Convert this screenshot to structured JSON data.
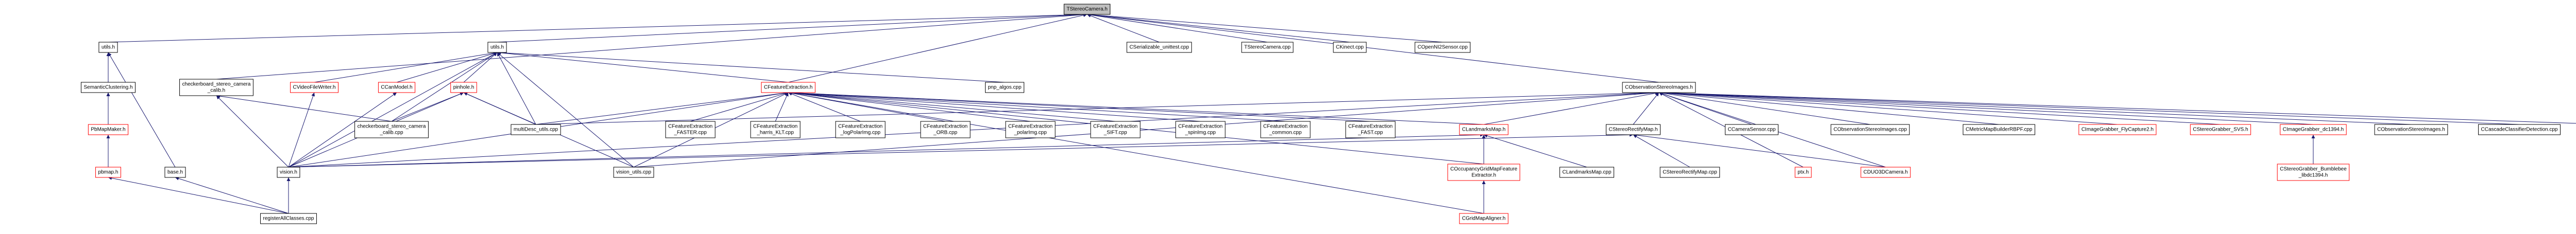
{
  "nodes": [
    {
      "lines": [
        "TStereoCamera.h"
      ],
      "fill": "#bfbfbf"
    },
    {
      "lines": [
        "utils.h"
      ]
    },
    {
      "lines": [
        "utils.h"
      ]
    },
    {
      "lines": [
        "CSerializable_unittest.cpp"
      ]
    },
    {
      "lines": [
        "TStereoCamera.cpp"
      ]
    },
    {
      "lines": [
        "CKinect.cpp"
      ]
    },
    {
      "lines": [
        "COpenNI2Sensor.cpp"
      ]
    },
    {
      "lines": [
        "SemanticClustering.h"
      ]
    },
    {
      "lines": [
        "checkerboard_stereo_camera",
        "_calib.h"
      ]
    },
    {
      "lines": [
        "CVideoFileWriter.h"
      ],
      "border": "#ff0000"
    },
    {
      "lines": [
        "CCanModel.h"
      ],
      "border": "#ff0000"
    },
    {
      "lines": [
        "pinhole.h"
      ],
      "border": "#ff0000"
    },
    {
      "lines": [
        "CFeatureExtraction.h"
      ],
      "border": "#ff0000"
    },
    {
      "lines": [
        "pnp_algos.cpp"
      ]
    },
    {
      "lines": [
        "CObservationStereoImages.h"
      ]
    },
    {
      "lines": [
        "PbMapMaker.h"
      ],
      "border": "#ff0000"
    },
    {
      "lines": [
        "checkerboard_stereo_camera",
        "_calib.cpp"
      ]
    },
    {
      "lines": [
        "multiDesc_utils.cpp"
      ]
    },
    {
      "lines": [
        "CFeatureExtraction",
        "_FASTER.cpp"
      ]
    },
    {
      "lines": [
        "CFeatureExtraction",
        "_harris_KLT.cpp"
      ]
    },
    {
      "lines": [
        "CFeatureExtraction",
        "_logPolarImg.cpp"
      ]
    },
    {
      "lines": [
        "CFeatureExtraction",
        "_ORB.cpp"
      ]
    },
    {
      "lines": [
        "CFeatureExtraction",
        "_polarImg.cpp"
      ]
    },
    {
      "lines": [
        "CFeatureExtraction",
        "_SIFT.cpp"
      ]
    },
    {
      "lines": [
        "CFeatureExtraction",
        "_spinImg.cpp"
      ]
    },
    {
      "lines": [
        "CFeatureExtraction",
        "_common.cpp"
      ]
    },
    {
      "lines": [
        "CFeatureExtraction",
        "_FAST.cpp"
      ]
    },
    {
      "lines": [
        "CLandmarksMap.h"
      ],
      "border": "#ff0000"
    },
    {
      "lines": [
        "CStereoRectifyMap.h"
      ]
    },
    {
      "lines": [
        "CCameraSensor.cpp"
      ]
    },
    {
      "lines": [
        "CObservationStereoImages.cpp"
      ]
    },
    {
      "lines": [
        "CMetricMapBuilderRBPF.cpp"
      ]
    },
    {
      "lines": [
        "CImageGrabber_FlyCapture2.h"
      ],
      "border": "#ff0000"
    },
    {
      "lines": [
        "CStereoGrabber_SVS.h"
      ],
      "border": "#ff0000"
    },
    {
      "lines": [
        "CImageGrabber_dc1394.h"
      ],
      "border": "#ff0000"
    },
    {
      "lines": [
        "CObservationStereoImages.h"
      ]
    },
    {
      "lines": [
        "CCascadeClassifierDetection.cpp"
      ]
    },
    {
      "lines": [
        "CObjectDetection.cpp"
      ]
    },
    {
      "lines": [
        "pbmap.h"
      ],
      "border": "#ff0000"
    },
    {
      "lines": [
        "base.h"
      ]
    },
    {
      "lines": [
        "vision.h"
      ]
    },
    {
      "lines": [
        "vision_utils.cpp"
      ]
    },
    {
      "lines": [
        "COccupancyGridMapFeature",
        "Extractor.h"
      ],
      "border": "#ff0000"
    },
    {
      "lines": [
        "CLandmarksMap.cpp"
      ]
    },
    {
      "lines": [
        "CStereoRectifyMap.cpp"
      ]
    },
    {
      "lines": [
        "ptx.h"
      ],
      "border": "#ff0000"
    },
    {
      "lines": [
        "CDUO3DCamera.h"
      ],
      "border": "#ff0000"
    },
    {
      "lines": [
        "CStereoGrabber_Bumblebee",
        "_libdc1394.h"
      ],
      "border": "#ff0000"
    },
    {
      "lines": [
        "registerAllClasses.cpp"
      ]
    },
    {
      "lines": [
        "CGridMapAligner.h"
      ],
      "border": "#ff0000"
    }
  ],
  "edges": [
    [
      1,
      0
    ],
    [
      2,
      0
    ],
    [
      3,
      0
    ],
    [
      4,
      0
    ],
    [
      5,
      0
    ],
    [
      6,
      0
    ],
    [
      8,
      0
    ],
    [
      12,
      0
    ],
    [
      14,
      0
    ],
    [
      7,
      1
    ],
    [
      39,
      1
    ],
    [
      15,
      7
    ],
    [
      38,
      7
    ],
    [
      38,
      15
    ],
    [
      9,
      2
    ],
    [
      10,
      2
    ],
    [
      11,
      2
    ],
    [
      12,
      2
    ],
    [
      13,
      2
    ],
    [
      16,
      2
    ],
    [
      17,
      2
    ],
    [
      40,
      2
    ],
    [
      41,
      2
    ],
    [
      16,
      8
    ],
    [
      40,
      8
    ],
    [
      40,
      9
    ],
    [
      40,
      10
    ],
    [
      16,
      11
    ],
    [
      17,
      11
    ],
    [
      40,
      11
    ],
    [
      41,
      11
    ],
    [
      17,
      12
    ],
    [
      18,
      12
    ],
    [
      19,
      12
    ],
    [
      20,
      12
    ],
    [
      21,
      12
    ],
    [
      22,
      12
    ],
    [
      23,
      12
    ],
    [
      24,
      12
    ],
    [
      25,
      12
    ],
    [
      26,
      12
    ],
    [
      27,
      12
    ],
    [
      40,
      12
    ],
    [
      41,
      12
    ],
    [
      42,
      12
    ],
    [
      49,
      12
    ],
    [
      27,
      14
    ],
    [
      28,
      14
    ],
    [
      29,
      14
    ],
    [
      30,
      14
    ],
    [
      31,
      14
    ],
    [
      32,
      14
    ],
    [
      33,
      14
    ],
    [
      34,
      14
    ],
    [
      35,
      14
    ],
    [
      36,
      14
    ],
    [
      37,
      14
    ],
    [
      17,
      14
    ],
    [
      40,
      14
    ],
    [
      41,
      14
    ],
    [
      45,
      14
    ],
    [
      46,
      14
    ],
    [
      40,
      27
    ],
    [
      42,
      27
    ],
    [
      43,
      27
    ],
    [
      49,
      27
    ],
    [
      40,
      28
    ],
    [
      44,
      28
    ],
    [
      46,
      28
    ],
    [
      47,
      34
    ],
    [
      49,
      42
    ],
    [
      48,
      38
    ],
    [
      48,
      39
    ],
    [
      48,
      40
    ]
  ]
}
